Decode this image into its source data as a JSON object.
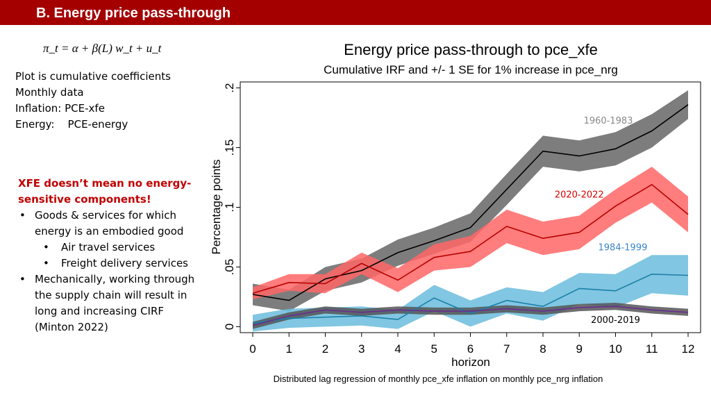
{
  "header": {
    "title": "B. Energy price pass-through"
  },
  "formula": "π_t = α + β(L) w_t + u_t",
  "notes": {
    "lines": [
      "Plot is cumulative coefficients",
      "Monthly data",
      "Inflation: PCE-xfe",
      "Energy:    PCE-energy"
    ]
  },
  "xfe": {
    "heading": "XFE doesn’t mean no energy-sensitive components!",
    "bullet1": "Goods & services for which energy is an embodied good",
    "sub1": "Air travel services",
    "sub2": "Freight delivery services",
    "bullet2": "Mechanically, working through the supply chain will result in long and increasing CIRF (Minton 2022)"
  },
  "chart_data": {
    "type": "line",
    "title": "Energy price pass-through to pce_xfe",
    "subtitle": "Cumulative IRF and +/- 1 SE for 1% increase in pce_nrg",
    "xlabel": "horizon",
    "ylabel": "Percentage points",
    "note": "Distributed lag regression of monthly pce_xfe inflation on monthly pce_nrg inflation",
    "x": [
      0,
      1,
      2,
      3,
      4,
      5,
      6,
      7,
      8,
      9,
      10,
      11,
      12
    ],
    "xlim": [
      0,
      12
    ],
    "ylim": [
      -0.005,
      0.205
    ],
    "xticks": [
      "0",
      "1",
      "2",
      "3",
      "4",
      "5",
      "6",
      "7",
      "8",
      "9",
      "10",
      "11",
      "12"
    ],
    "yticks": [
      {
        "value": 0,
        "label": "0"
      },
      {
        "value": 0.05,
        "label": ".05"
      },
      {
        "value": 0.1,
        "label": ".1"
      },
      {
        "value": 0.15,
        "label": ".15"
      },
      {
        "value": 0.2,
        "label": ".2"
      }
    ],
    "series": [
      {
        "name": "1960-1983",
        "color": "#000000",
        "band_color": "#666666",
        "label_color": "#888888",
        "label_x": 9.8,
        "label_y": 0.17,
        "values": [
          0.027,
          0.022,
          0.04,
          0.047,
          0.062,
          0.072,
          0.083,
          0.115,
          0.147,
          0.143,
          0.149,
          0.164,
          0.186
        ],
        "se": [
          0.009,
          0.009,
          0.01,
          0.01,
          0.011,
          0.011,
          0.012,
          0.013,
          0.013,
          0.013,
          0.014,
          0.014,
          0.012
        ]
      },
      {
        "name": "2020-2022",
        "color": "#b80000",
        "band_color": "#ff6666",
        "label_color": "#d80000",
        "label_x": 9.0,
        "label_y": 0.108,
        "values": [
          0.028,
          0.037,
          0.036,
          0.053,
          0.039,
          0.058,
          0.063,
          0.084,
          0.074,
          0.079,
          0.101,
          0.119,
          0.094
        ],
        "se": [
          0.005,
          0.007,
          0.008,
          0.009,
          0.01,
          0.011,
          0.013,
          0.014,
          0.014,
          0.014,
          0.014,
          0.015,
          0.015
        ]
      },
      {
        "name": "1984-1999",
        "color": "#1a7fa8",
        "band_color": "#6bbcdd",
        "label_color": "#3a86c8",
        "label_x": 10.2,
        "label_y": 0.064,
        "values": [
          0.003,
          0.007,
          0.008,
          0.009,
          0.006,
          0.024,
          0.011,
          0.022,
          0.017,
          0.032,
          0.03,
          0.044,
          0.043
        ],
        "se": [
          0.007,
          0.008,
          0.008,
          0.008,
          0.008,
          0.011,
          0.011,
          0.011,
          0.012,
          0.013,
          0.014,
          0.016,
          0.017
        ]
      },
      {
        "name": "2000-2019",
        "color": "#6a2c91",
        "band_color": "#555555",
        "label_color": "#000000",
        "label_x": 10.0,
        "label_y": 0.003,
        "values": [
          0.001,
          0.009,
          0.014,
          0.012,
          0.014,
          0.013,
          0.013,
          0.015,
          0.013,
          0.016,
          0.017,
          0.014,
          0.012
        ],
        "se": [
          0.003,
          0.003,
          0.003,
          0.003,
          0.003,
          0.003,
          0.003,
          0.003,
          0.003,
          0.003,
          0.003,
          0.003,
          0.003
        ]
      }
    ]
  }
}
